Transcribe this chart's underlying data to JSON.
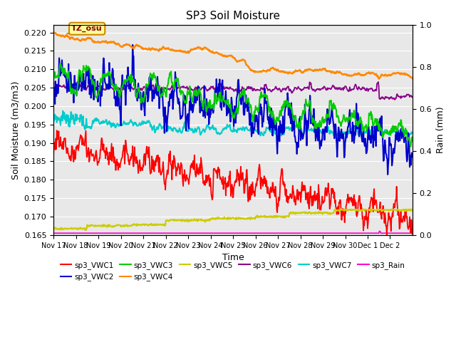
{
  "title": "SP3 Soil Moisture",
  "xlabel": "Time",
  "ylabel_left": "Soil Moisture (m3/m3)",
  "ylabel_right": "Rain (mm)",
  "ylim_left": [
    0.165,
    0.222
  ],
  "ylim_right": [
    0.0,
    1.0
  ],
  "annotation_text": "TZ_osu",
  "background_color": "#e8e8e8",
  "xtick_labels": [
    "Nov 17",
    "Nov 18",
    "Nov 19",
    "Nov 20",
    "Nov 21",
    "Nov 22",
    "Nov 23",
    "Nov 24",
    "Nov 25",
    "Nov 26",
    "Nov 27",
    "Nov 28",
    "Nov 29",
    "Nov 30",
    "Dec 1",
    "Dec 2"
  ],
  "legend_colors_vwc1": "#ff0000",
  "legend_colors_vwc2": "#0000cc",
  "legend_colors_vwc3": "#00cc00",
  "legend_colors_vwc4": "#ff8800",
  "legend_colors_vwc5": "#cccc00",
  "legend_colors_vwc6": "#880088",
  "legend_colors_vwc7": "#00cccc",
  "legend_colors_rain": "#ff00cc"
}
